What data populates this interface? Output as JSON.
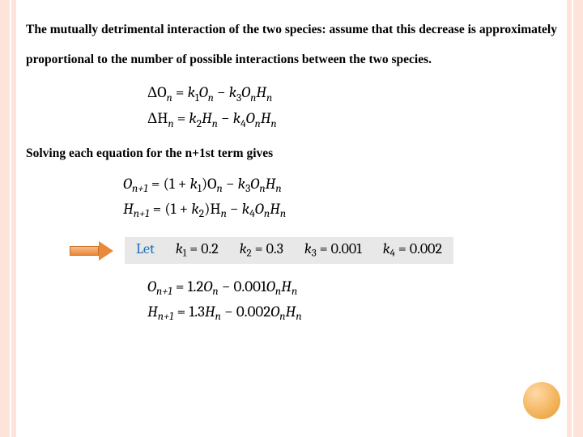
{
  "para1": "The mutually detrimental interaction of the two species: assume that this decrease is approximately proportional to the number of possible interactions between the two species.",
  "eq1": {
    "line1_lhs": "ΔO",
    "line1_sub1": "n",
    "line1_eq": " = ",
    "line1_t1": "k",
    "line1_t1s": "1",
    "line1_t2": "O",
    "line1_t2s": "n",
    "line1_minus": " − ",
    "line1_t3": "k",
    "line1_t3s": "3",
    "line1_t4": "O",
    "line1_t4s": "n",
    "line1_t5": "H",
    "line1_t5s": "n",
    "line2_lhs": "ΔH",
    "line2_sub1": "n",
    "line2_eq": " = ",
    "line2_t1": "k",
    "line2_t1s": "2",
    "line2_t2": "H",
    "line2_t2s": "n",
    "line2_minus": " − ",
    "line2_t3": "k",
    "line2_t3s": "4",
    "line2_t4": "O",
    "line2_t4s": "n",
    "line2_t5": "H",
    "line2_t5s": "n"
  },
  "para2": "Solving each equation for the n+1st term gives",
  "eq2": {
    "l1a": "O",
    "l1as": "n+1",
    "l1eq": " = (1 + ",
    "l1b": "k",
    "l1bs": "1",
    "l1c": ")O",
    "l1cs": "n",
    "l1m": " − ",
    "l1d": "k",
    "l1ds": "3",
    "l1e": "O",
    "l1es": "n",
    "l1f": "H",
    "l1fs": "n",
    "l2a": "H",
    "l2as": "n+1",
    "l2eq": " = (1 + ",
    "l2b": "k",
    "l2bs": "2",
    "l2c": ")H",
    "l2cs": "n",
    "l2m": " − ",
    "l2d": "k",
    "l2ds": "4",
    "l2e": "O",
    "l2es": "n",
    "l2f": "H",
    "l2fs": "n"
  },
  "let": {
    "word": "Let",
    "k1l": "k",
    "k1s": "1",
    "k1v": " = 0.2",
    "k2l": "k",
    "k2s": "2",
    "k2v": " = 0.3",
    "k3l": "k",
    "k3s": "3",
    "k3v": " = 0.001",
    "k4l": "k",
    "k4s": "4",
    "k4v": " = 0.002"
  },
  "eq3": {
    "l1a": "O",
    "l1as": "n+1",
    "l1b": " = 1.2",
    "l1c": "O",
    "l1cs": "n",
    "l1m": " − 0.001",
    "l1d": "O",
    "l1ds": "n",
    "l1e": "H",
    "l1es": "n",
    "l2a": "H",
    "l2as": "n+1",
    "l2b": " = 1.3",
    "l2c": "H",
    "l2cs": "n",
    "l2m": " − 0.002",
    "l2d": "O",
    "l2ds": "n",
    "l2e": "H",
    "l2es": "n"
  },
  "colors": {
    "stripe": "#fde3d9",
    "letbox_bg": "#e8e8e8",
    "let_word": "#1f6fb5",
    "arrow_fill": "#e88a3a",
    "circle": "#f2b35a"
  }
}
